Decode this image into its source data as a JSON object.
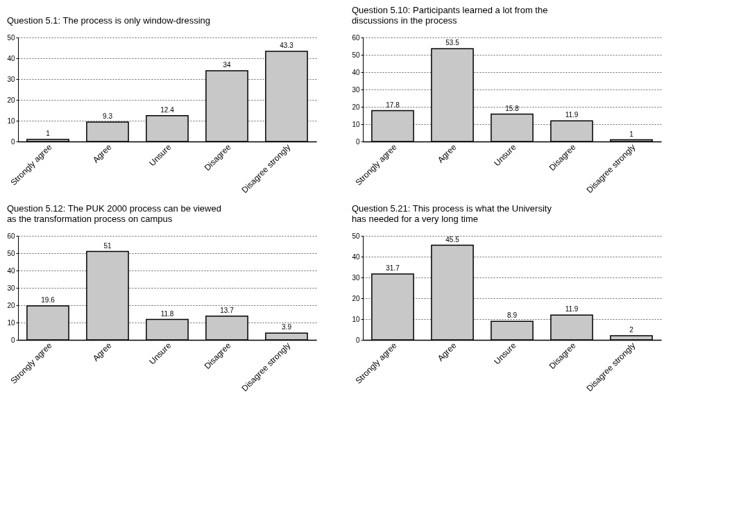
{
  "chart_data": [
    {
      "type": "bar",
      "title": "Question 5.1:  The process is only window-dressing",
      "categories": [
        "Strongly agree",
        "Agree",
        "Unsure",
        "Disagree",
        "Disagree strongly"
      ],
      "values": [
        1,
        9.3,
        12.4,
        34,
        43.3
      ],
      "color": "#c8c8c8",
      "ylim": [
        0,
        50
      ],
      "yticks": [
        0,
        10,
        20,
        30,
        40,
        50
      ],
      "grid": "y",
      "data_labels": true
    },
    {
      "type": "bar",
      "title": "Question 5.10:  Participants learned a lot from the discussions in the process",
      "categories": [
        "Strongly agree",
        "Agree",
        "Unsure",
        "Disagree",
        "Disagree strongly"
      ],
      "values": [
        17.8,
        53.5,
        15.8,
        11.9,
        1
      ],
      "color": "#c8c8c8",
      "ylim": [
        0,
        60
      ],
      "yticks": [
        0,
        10,
        20,
        30,
        40,
        50,
        60
      ],
      "grid": "y",
      "data_labels": true
    },
    {
      "type": "bar",
      "title": "Question 5.12:  The PUK 2000 process can be viewed as the transformation process on campus",
      "categories": [
        "Strongly agree",
        "Agree",
        "Unsure",
        "Disagree",
        "Disagree strongly"
      ],
      "values": [
        19.6,
        51,
        11.8,
        13.7,
        3.9
      ],
      "color": "#c8c8c8",
      "ylim": [
        0,
        60
      ],
      "yticks": [
        0,
        10,
        20,
        30,
        40,
        50,
        60
      ],
      "grid": "y",
      "data_labels": true
    },
    {
      "type": "bar",
      "title": "Question 5.21:  This process is what the University has needed for a very long time",
      "categories": [
        "Strongly agree",
        "Agree",
        "Unsure",
        "Disagree",
        "Disagree strongly"
      ],
      "values": [
        31.7,
        45.5,
        8.9,
        11.9,
        2
      ],
      "color": "#c8c8c8",
      "ylim": [
        0,
        50
      ],
      "yticks": [
        0,
        10,
        20,
        30,
        40,
        50
      ],
      "grid": "y",
      "data_labels": true
    }
  ]
}
